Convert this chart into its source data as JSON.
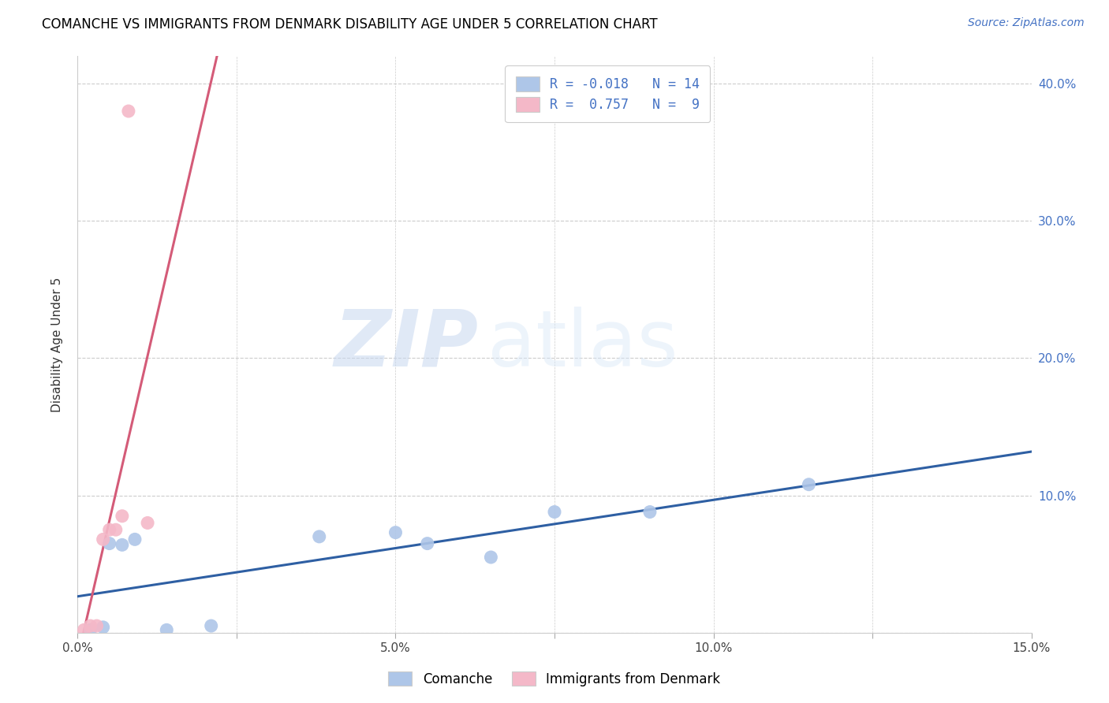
{
  "title": "COMANCHE VS IMMIGRANTS FROM DENMARK DISABILITY AGE UNDER 5 CORRELATION CHART",
  "source": "Source: ZipAtlas.com",
  "ylabel": "Disability Age Under 5",
  "xlim": [
    0.0,
    0.15
  ],
  "ylim": [
    0.0,
    0.42
  ],
  "xticks": [
    0.0,
    0.025,
    0.05,
    0.075,
    0.1,
    0.125,
    0.15
  ],
  "xtick_labels": [
    "0.0%",
    "",
    "5.0%",
    "",
    "10.0%",
    "",
    "15.0%"
  ],
  "yticks": [
    0.0,
    0.1,
    0.2,
    0.3,
    0.4
  ],
  "ytick_labels_right": [
    "",
    "10.0%",
    "20.0%",
    "30.0%",
    "40.0%"
  ],
  "comanche_x": [
    0.002,
    0.004,
    0.005,
    0.007,
    0.009,
    0.014,
    0.021,
    0.038,
    0.05,
    0.055,
    0.065,
    0.075,
    0.09,
    0.115
  ],
  "comanche_y": [
    0.002,
    0.004,
    0.065,
    0.064,
    0.068,
    0.002,
    0.005,
    0.07,
    0.073,
    0.065,
    0.055,
    0.088,
    0.088,
    0.108
  ],
  "denmark_x": [
    0.001,
    0.002,
    0.003,
    0.004,
    0.005,
    0.006,
    0.007,
    0.008,
    0.011
  ],
  "denmark_y": [
    0.002,
    0.005,
    0.005,
    0.068,
    0.075,
    0.075,
    0.085,
    0.38,
    0.08
  ],
  "comanche_color": "#aec6e8",
  "denmark_color": "#f4b8c8",
  "comanche_R": -0.018,
  "comanche_N": 14,
  "denmark_R": 0.757,
  "denmark_N": 9,
  "trend_comanche_color": "#2e5fa3",
  "trend_denmark_color": "#d45b78",
  "watermark_zip": "ZIP",
  "watermark_atlas": "atlas",
  "legend_comanche": "Comanche",
  "legend_denmark": "Immigrants from Denmark"
}
